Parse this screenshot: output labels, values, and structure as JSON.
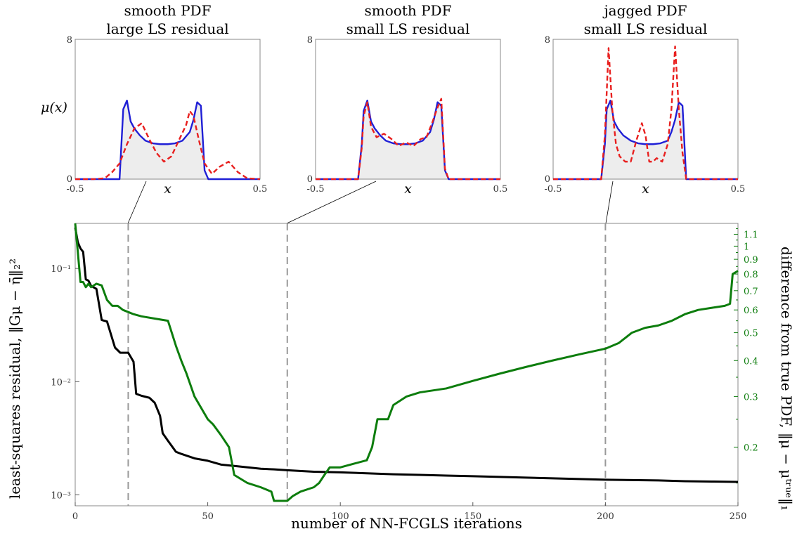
{
  "chart_data": [
    {
      "type": "area",
      "title": [
        "smooth PDF",
        "large LS residual"
      ],
      "ylabel": "μ(x)",
      "xlabel": "x",
      "xlim": [
        -0.5,
        0.5
      ],
      "ylim": [
        0,
        8
      ],
      "xticklabels": [
        "-0.5",
        "0.5"
      ],
      "yticklabels": [
        "0",
        "8"
      ],
      "series": [
        {
          "color": "#1f1fd6",
          "style": "solid",
          "x": [
            -0.5,
            -0.35,
            -0.3,
            -0.26,
            -0.24,
            -0.22,
            -0.2,
            -0.18,
            -0.15,
            -0.12,
            -0.08,
            -0.04,
            0.0,
            0.04,
            0.08,
            0.12,
            0.14,
            0.16,
            0.18,
            0.2,
            0.22,
            0.24,
            0.3,
            0.5
          ],
          "y": [
            0,
            0,
            0,
            0,
            4.0,
            4.5,
            3.3,
            2.9,
            2.5,
            2.2,
            2.05,
            2.0,
            2.0,
            2.05,
            2.2,
            2.7,
            3.4,
            4.4,
            4.2,
            0.5,
            0,
            0,
            0,
            0
          ]
        },
        {
          "color": "#e8201f",
          "style": "dashed",
          "x": [
            -0.5,
            -0.4,
            -0.34,
            -0.3,
            -0.26,
            -0.22,
            -0.18,
            -0.14,
            -0.1,
            -0.06,
            -0.02,
            0.02,
            0.06,
            0.1,
            0.12,
            0.14,
            0.17,
            0.2,
            0.24,
            0.28,
            0.33,
            0.38,
            0.43,
            0.5
          ],
          "y": [
            0,
            0,
            0.05,
            0.4,
            0.9,
            2.0,
            2.9,
            3.2,
            2.3,
            1.5,
            1.0,
            1.3,
            2.2,
            3.1,
            3.9,
            3.6,
            2.2,
            0.9,
            0.3,
            0.7,
            1.0,
            0.4,
            0.05,
            0
          ]
        }
      ]
    },
    {
      "type": "area",
      "title": [
        "smooth PDF",
        "small LS residual"
      ],
      "xlabel": "x",
      "xlim": [
        -0.5,
        0.5
      ],
      "ylim": [
        0,
        8
      ],
      "xticklabels": [
        "-0.5",
        "0.5"
      ],
      "yticklabels": [
        "0",
        "8"
      ],
      "series": [
        {
          "color": "#1f1fd6",
          "style": "solid",
          "x": [
            -0.5,
            -0.3,
            -0.27,
            -0.25,
            -0.24,
            -0.22,
            -0.2,
            -0.18,
            -0.15,
            -0.12,
            -0.08,
            -0.04,
            0.0,
            0.04,
            0.08,
            0.12,
            0.14,
            0.16,
            0.18,
            0.2,
            0.22,
            0.5
          ],
          "y": [
            0,
            0,
            0,
            2.0,
            3.9,
            4.5,
            3.3,
            2.9,
            2.5,
            2.2,
            2.05,
            2.0,
            2.0,
            2.05,
            2.2,
            2.7,
            3.4,
            4.4,
            4.2,
            0.5,
            0,
            0
          ]
        },
        {
          "color": "#e8201f",
          "style": "dashed",
          "x": [
            -0.5,
            -0.3,
            -0.27,
            -0.25,
            -0.24,
            -0.22,
            -0.2,
            -0.17,
            -0.13,
            -0.09,
            -0.05,
            -0.01,
            0.03,
            0.07,
            0.1,
            0.13,
            0.16,
            0.18,
            0.2,
            0.22,
            0.5
          ],
          "y": [
            0,
            0,
            0,
            1.8,
            3.6,
            4.4,
            3.0,
            2.4,
            2.6,
            2.3,
            1.9,
            2.1,
            1.9,
            2.3,
            2.4,
            3.2,
            4.1,
            4.6,
            0.6,
            0,
            0
          ]
        }
      ]
    },
    {
      "type": "area",
      "title": [
        "jagged PDF",
        "small LS residual"
      ],
      "xlabel": "x",
      "xlim": [
        -0.5,
        0.5
      ],
      "ylim": [
        0,
        8
      ],
      "xticklabels": [
        "-0.5",
        "0.5"
      ],
      "yticklabels": [
        "0",
        "8"
      ],
      "series": [
        {
          "color": "#1f1fd6",
          "style": "solid",
          "x": [
            -0.5,
            -0.24,
            -0.22,
            -0.21,
            -0.19,
            -0.17,
            -0.15,
            -0.12,
            -0.08,
            -0.04,
            0.0,
            0.04,
            0.08,
            0.12,
            0.14,
            0.16,
            0.18,
            0.2,
            0.22,
            0.5
          ],
          "y": [
            0,
            0,
            2.0,
            4.0,
            4.5,
            3.3,
            2.9,
            2.5,
            2.2,
            2.05,
            2.0,
            2.0,
            2.05,
            2.2,
            2.7,
            3.4,
            4.4,
            4.2,
            0,
            0
          ]
        },
        {
          "color": "#e8201f",
          "style": "dashed",
          "x": [
            -0.5,
            -0.24,
            -0.22,
            -0.2,
            -0.18,
            -0.16,
            -0.14,
            -0.11,
            -0.08,
            -0.05,
            -0.02,
            0.0,
            0.02,
            0.04,
            0.06,
            0.09,
            0.12,
            0.14,
            0.16,
            0.18,
            0.2,
            0.22,
            0.5
          ],
          "y": [
            0,
            0,
            2.5,
            7.5,
            4.0,
            2.0,
            1.3,
            1.0,
            1.0,
            2.2,
            3.2,
            2.5,
            1.0,
            1.0,
            1.2,
            1.0,
            2.0,
            4.0,
            7.6,
            4.0,
            1.5,
            0,
            0
          ]
        }
      ]
    },
    {
      "type": "line",
      "xlabel": "number of NN-FCGLS iterations",
      "ylabel_left": "least-squares residual, ‖Gμ − η̄‖₂²",
      "ylabel_right": "difference from true PDF, ‖μ − μᵗʳᵘᵉ‖₁",
      "xlim": [
        0,
        250
      ],
      "ylim_left": [
        0.0008,
        0.25
      ],
      "ylim_right": [
        0.125,
        1.2
      ],
      "yscale": "log",
      "xticks": [
        0,
        50,
        100,
        150,
        200,
        250
      ],
      "xticklabels": [
        "0",
        "50",
        "100",
        "150",
        "200",
        "250"
      ],
      "yticks_left": [
        0.1,
        0.01,
        0.001
      ],
      "yticklabels_left": [
        "10⁻¹",
        "10⁻²",
        "10⁻³"
      ],
      "yticks_right": [
        1.1,
        1.0,
        0.9,
        0.8,
        0.7,
        0.6,
        0.5,
        0.4,
        0.3,
        0.2
      ],
      "yticklabels_right": [
        "1.1",
        "1",
        "0.9",
        "0.8",
        "0.7",
        "0.6",
        "0.5",
        "0.4",
        "0.3",
        "0.2"
      ],
      "vlines": [
        20,
        80,
        200
      ],
      "series": [
        {
          "axis": "left",
          "color": "#000000",
          "x": [
            0,
            1,
            2,
            3,
            4,
            5,
            6,
            8,
            10,
            12,
            15,
            17,
            20,
            22,
            23,
            25,
            28,
            30,
            32,
            33,
            35,
            38,
            40,
            45,
            50,
            55,
            60,
            65,
            70,
            75,
            80,
            90,
            100,
            110,
            120,
            130,
            140,
            150,
            160,
            170,
            180,
            190,
            200,
            210,
            220,
            230,
            240,
            250
          ],
          "y": [
            0.23,
            0.17,
            0.15,
            0.14,
            0.08,
            0.078,
            0.07,
            0.066,
            0.035,
            0.034,
            0.02,
            0.018,
            0.018,
            0.015,
            0.0078,
            0.0075,
            0.0072,
            0.0065,
            0.005,
            0.0035,
            0.003,
            0.0024,
            0.0023,
            0.0021,
            0.002,
            0.00185,
            0.0018,
            0.00175,
            0.0017,
            0.00168,
            0.00165,
            0.0016,
            0.00158,
            0.00155,
            0.00152,
            0.0015,
            0.00148,
            0.00146,
            0.00144,
            0.00142,
            0.0014,
            0.00138,
            0.00136,
            0.00135,
            0.00134,
            0.00132,
            0.00131,
            0.0013
          ]
        },
        {
          "axis": "right",
          "color": "#0d7d0d",
          "x": [
            0,
            1,
            2,
            3,
            4,
            5,
            6,
            7,
            8,
            10,
            12,
            14,
            16,
            18,
            20,
            22,
            25,
            30,
            35,
            38,
            40,
            42,
            45,
            50,
            52,
            55,
            58,
            60,
            65,
            70,
            74,
            75,
            80,
            82,
            85,
            90,
            92,
            94,
            96,
            100,
            105,
            110,
            112,
            114,
            118,
            120,
            125,
            130,
            140,
            150,
            160,
            170,
            180,
            190,
            200,
            205,
            210,
            215,
            220,
            225,
            230,
            235,
            240,
            245,
            247,
            248,
            250
          ],
          "y": [
            1.2,
            0.95,
            0.75,
            0.75,
            0.72,
            0.74,
            0.72,
            0.73,
            0.74,
            0.73,
            0.65,
            0.62,
            0.62,
            0.6,
            0.59,
            0.58,
            0.57,
            0.56,
            0.55,
            0.45,
            0.4,
            0.36,
            0.3,
            0.25,
            0.24,
            0.22,
            0.2,
            0.16,
            0.15,
            0.145,
            0.14,
            0.13,
            0.13,
            0.135,
            0.14,
            0.145,
            0.15,
            0.16,
            0.17,
            0.17,
            0.175,
            0.18,
            0.2,
            0.25,
            0.25,
            0.28,
            0.3,
            0.31,
            0.32,
            0.34,
            0.36,
            0.38,
            0.4,
            0.42,
            0.44,
            0.46,
            0.5,
            0.52,
            0.53,
            0.55,
            0.58,
            0.6,
            0.61,
            0.62,
            0.63,
            0.8,
            0.82
          ]
        }
      ]
    }
  ]
}
